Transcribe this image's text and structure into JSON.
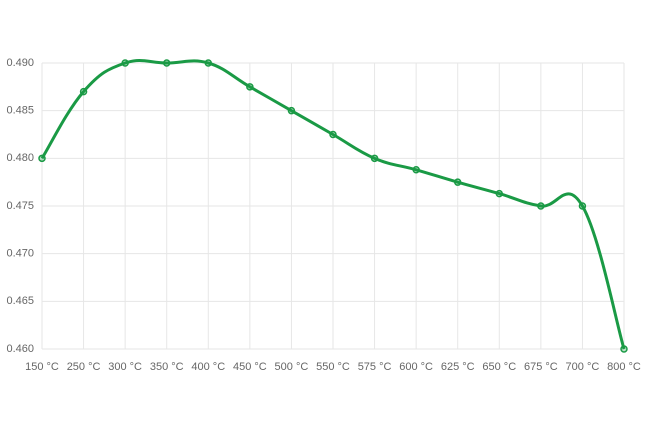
{
  "chart_data": {
    "type": "line",
    "categories": [
      "150 °C",
      "250 °C",
      "300 °C",
      "350 °C",
      "400 °C",
      "450 °C",
      "500 °C",
      "550 °C",
      "575 °C",
      "600 °C",
      "625 °C",
      "650 °C",
      "675 °C",
      "700 °C",
      "800 °C"
    ],
    "values": [
      0.48,
      0.487,
      0.49,
      0.49,
      0.49,
      0.4875,
      0.485,
      0.4825,
      0.48,
      0.4788,
      0.4775,
      0.4763,
      0.475,
      0.475,
      0.46
    ],
    "color": "#1a9a45",
    "ylim": [
      0.46,
      0.49
    ],
    "yticks": [
      {
        "value": 0.46,
        "label": "0.460"
      },
      {
        "value": 0.465,
        "label": "0.465"
      },
      {
        "value": 0.47,
        "label": "0.470"
      },
      {
        "value": 0.475,
        "label": "0.475"
      },
      {
        "value": 0.48,
        "label": "0.480"
      },
      {
        "value": 0.485,
        "label": "0.485"
      },
      {
        "value": 0.49,
        "label": "0.490"
      }
    ],
    "grid": true
  }
}
